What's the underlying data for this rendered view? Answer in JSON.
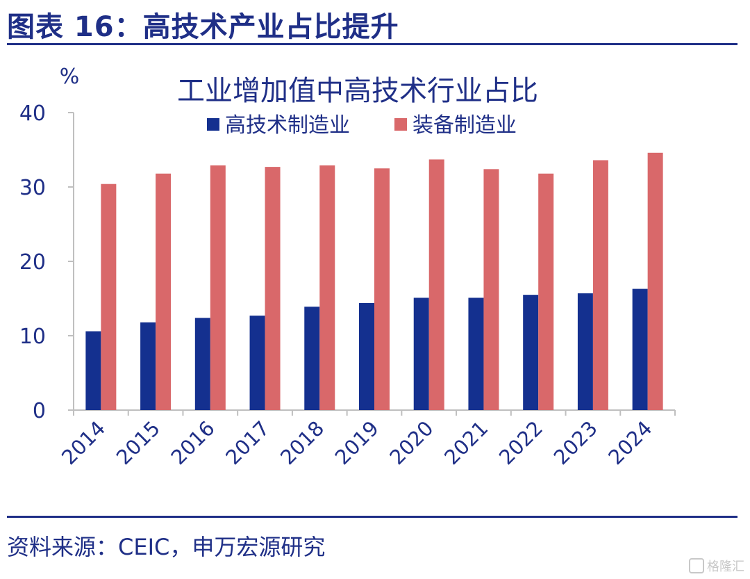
{
  "figure": {
    "title": "图表 16：高技术产业占比提升",
    "source": "资料来源：CEIC，申万宏源研究",
    "watermark": "格隆汇"
  },
  "colors": {
    "primary_text": "#1f2f87",
    "series_high_tech": "#14308f",
    "series_equipment": "#d9686a",
    "axis": "#bfbfbf"
  },
  "chart_data": {
    "type": "bar",
    "title": "工业增加值中高技术行业占比",
    "ylabel": "%",
    "xlabel": "",
    "ylim": [
      0,
      40
    ],
    "yticks": [
      0,
      10,
      20,
      30,
      40
    ],
    "grid": false,
    "legend_position": "top",
    "categories": [
      "2014",
      "2015",
      "2016",
      "2017",
      "2018",
      "2019",
      "2020",
      "2021",
      "2022",
      "2023",
      "2024"
    ],
    "series": [
      {
        "name": "高技术制造业",
        "color": "#14308f",
        "values": [
          10.6,
          11.8,
          12.4,
          12.7,
          13.9,
          14.4,
          15.1,
          15.1,
          15.5,
          15.7,
          16.3
        ]
      },
      {
        "name": "装备制造业",
        "color": "#d9686a",
        "values": [
          30.4,
          31.8,
          32.9,
          32.7,
          32.9,
          32.5,
          33.7,
          32.4,
          31.8,
          33.6,
          34.6
        ]
      }
    ]
  }
}
